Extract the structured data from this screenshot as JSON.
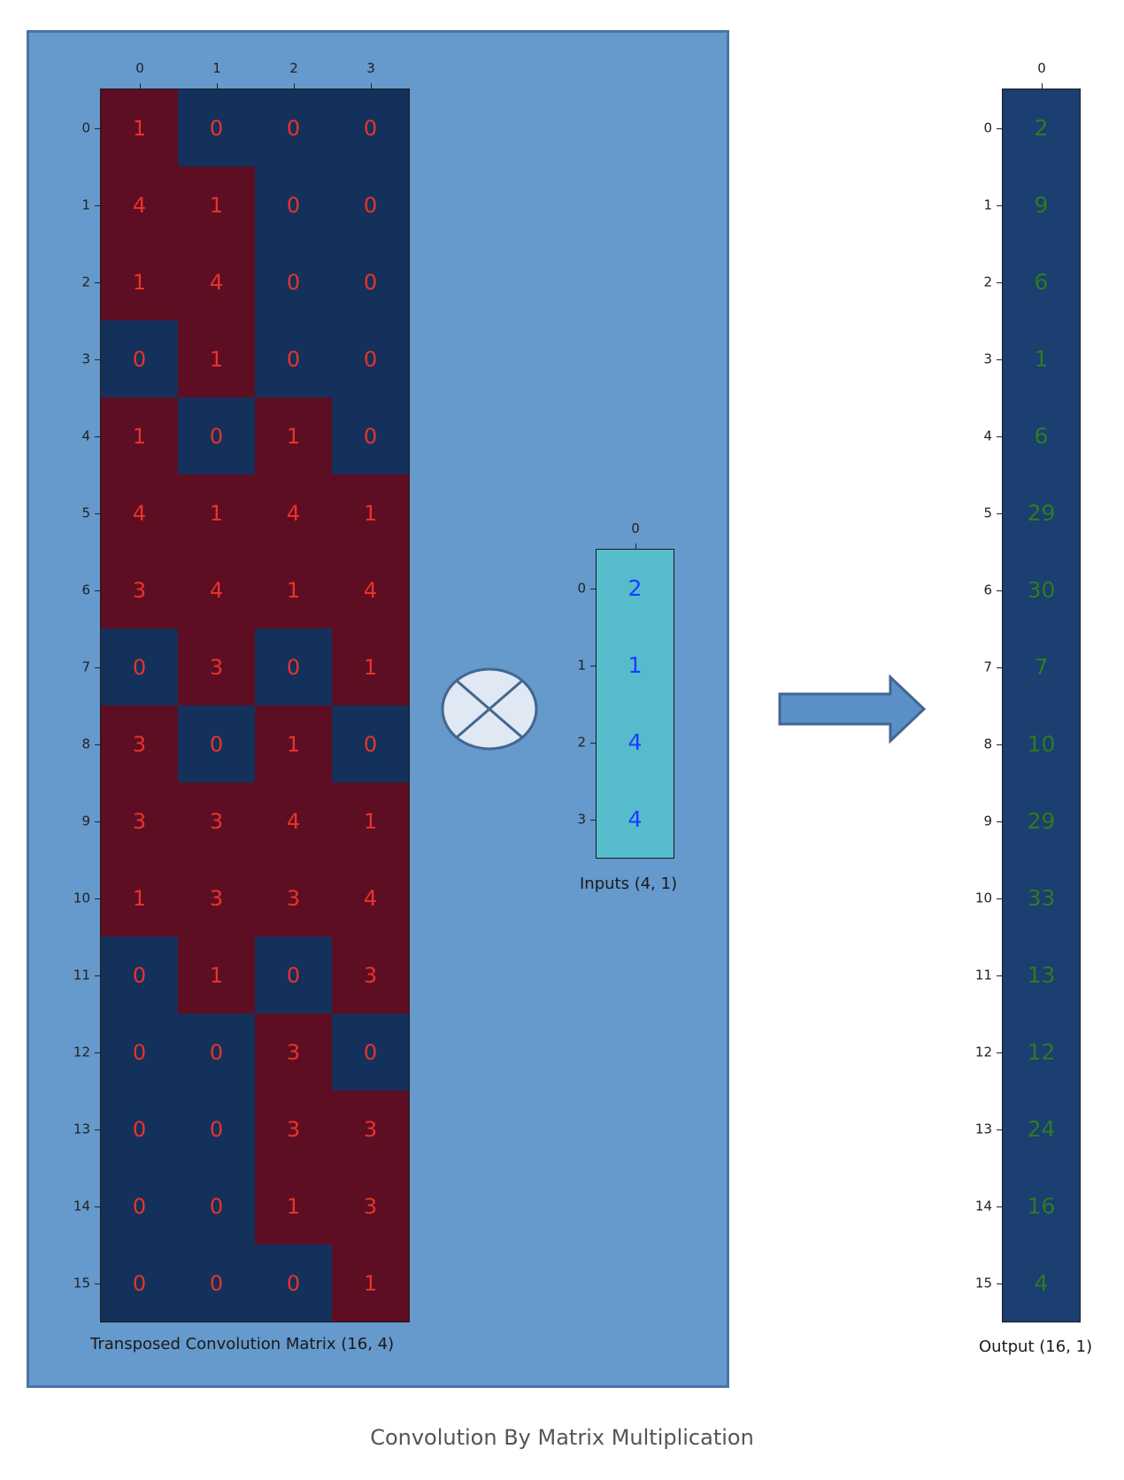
{
  "matrix": {
    "title": "Transposed Convolution Matrix (16, 4)",
    "col_ticks": [
      "0",
      "1",
      "2",
      "3"
    ],
    "row_ticks": [
      "0",
      "1",
      "2",
      "3",
      "4",
      "5",
      "6",
      "7",
      "8",
      "9",
      "10",
      "11",
      "12",
      "13",
      "14",
      "15"
    ],
    "values": [
      [
        1,
        0,
        0,
        0
      ],
      [
        4,
        1,
        0,
        0
      ],
      [
        1,
        4,
        0,
        0
      ],
      [
        0,
        1,
        0,
        0
      ],
      [
        1,
        0,
        1,
        0
      ],
      [
        4,
        1,
        4,
        1
      ],
      [
        3,
        4,
        1,
        4
      ],
      [
        0,
        3,
        0,
        1
      ],
      [
        3,
        0,
        1,
        0
      ],
      [
        3,
        3,
        4,
        1
      ],
      [
        1,
        3,
        3,
        4
      ],
      [
        0,
        1,
        0,
        3
      ],
      [
        0,
        0,
        3,
        0
      ],
      [
        0,
        0,
        3,
        3
      ],
      [
        0,
        0,
        1,
        3
      ],
      [
        0,
        0,
        0,
        1
      ]
    ],
    "highlight": [
      [
        1,
        0,
        0,
        0
      ],
      [
        1,
        1,
        0,
        0
      ],
      [
        1,
        1,
        0,
        0
      ],
      [
        0,
        1,
        0,
        0
      ],
      [
        1,
        0,
        1,
        0
      ],
      [
        1,
        1,
        1,
        1
      ],
      [
        1,
        1,
        1,
        1
      ],
      [
        0,
        1,
        0,
        1
      ],
      [
        1,
        0,
        1,
        0
      ],
      [
        1,
        1,
        1,
        1
      ],
      [
        1,
        1,
        1,
        1
      ],
      [
        0,
        1,
        0,
        1
      ],
      [
        0,
        0,
        1,
        0
      ],
      [
        0,
        0,
        1,
        1
      ],
      [
        0,
        0,
        1,
        1
      ],
      [
        0,
        0,
        0,
        1
      ]
    ]
  },
  "inputs": {
    "title": "Inputs (4, 1)",
    "col_ticks": [
      "0"
    ],
    "row_ticks": [
      "0",
      "1",
      "2",
      "3"
    ],
    "values": [
      2,
      1,
      4,
      4
    ]
  },
  "output": {
    "title": "Output (16, 1)",
    "col_ticks": [
      "0"
    ],
    "row_ticks": [
      "0",
      "1",
      "2",
      "3",
      "4",
      "5",
      "6",
      "7",
      "8",
      "9",
      "10",
      "11",
      "12",
      "13",
      "14",
      "15"
    ],
    "values": [
      2,
      9,
      6,
      1,
      6,
      29,
      30,
      7,
      10,
      29,
      33,
      13,
      12,
      24,
      16,
      4
    ]
  },
  "caption": "Convolution By Matrix Multiplication",
  "colors": {
    "panel_bg": "#6699cc",
    "matrix_highlight": "#5e0e22",
    "matrix_dark": "#13315a",
    "matrix_text": "#e8322c",
    "inputs_bg": "#56bccc",
    "inputs_text": "#1a3cff",
    "output_bg": "#1a3f70",
    "output_text": "#2e7a22",
    "arrow": "#5b8fc7",
    "operator_fill": "#dfe8f3"
  }
}
